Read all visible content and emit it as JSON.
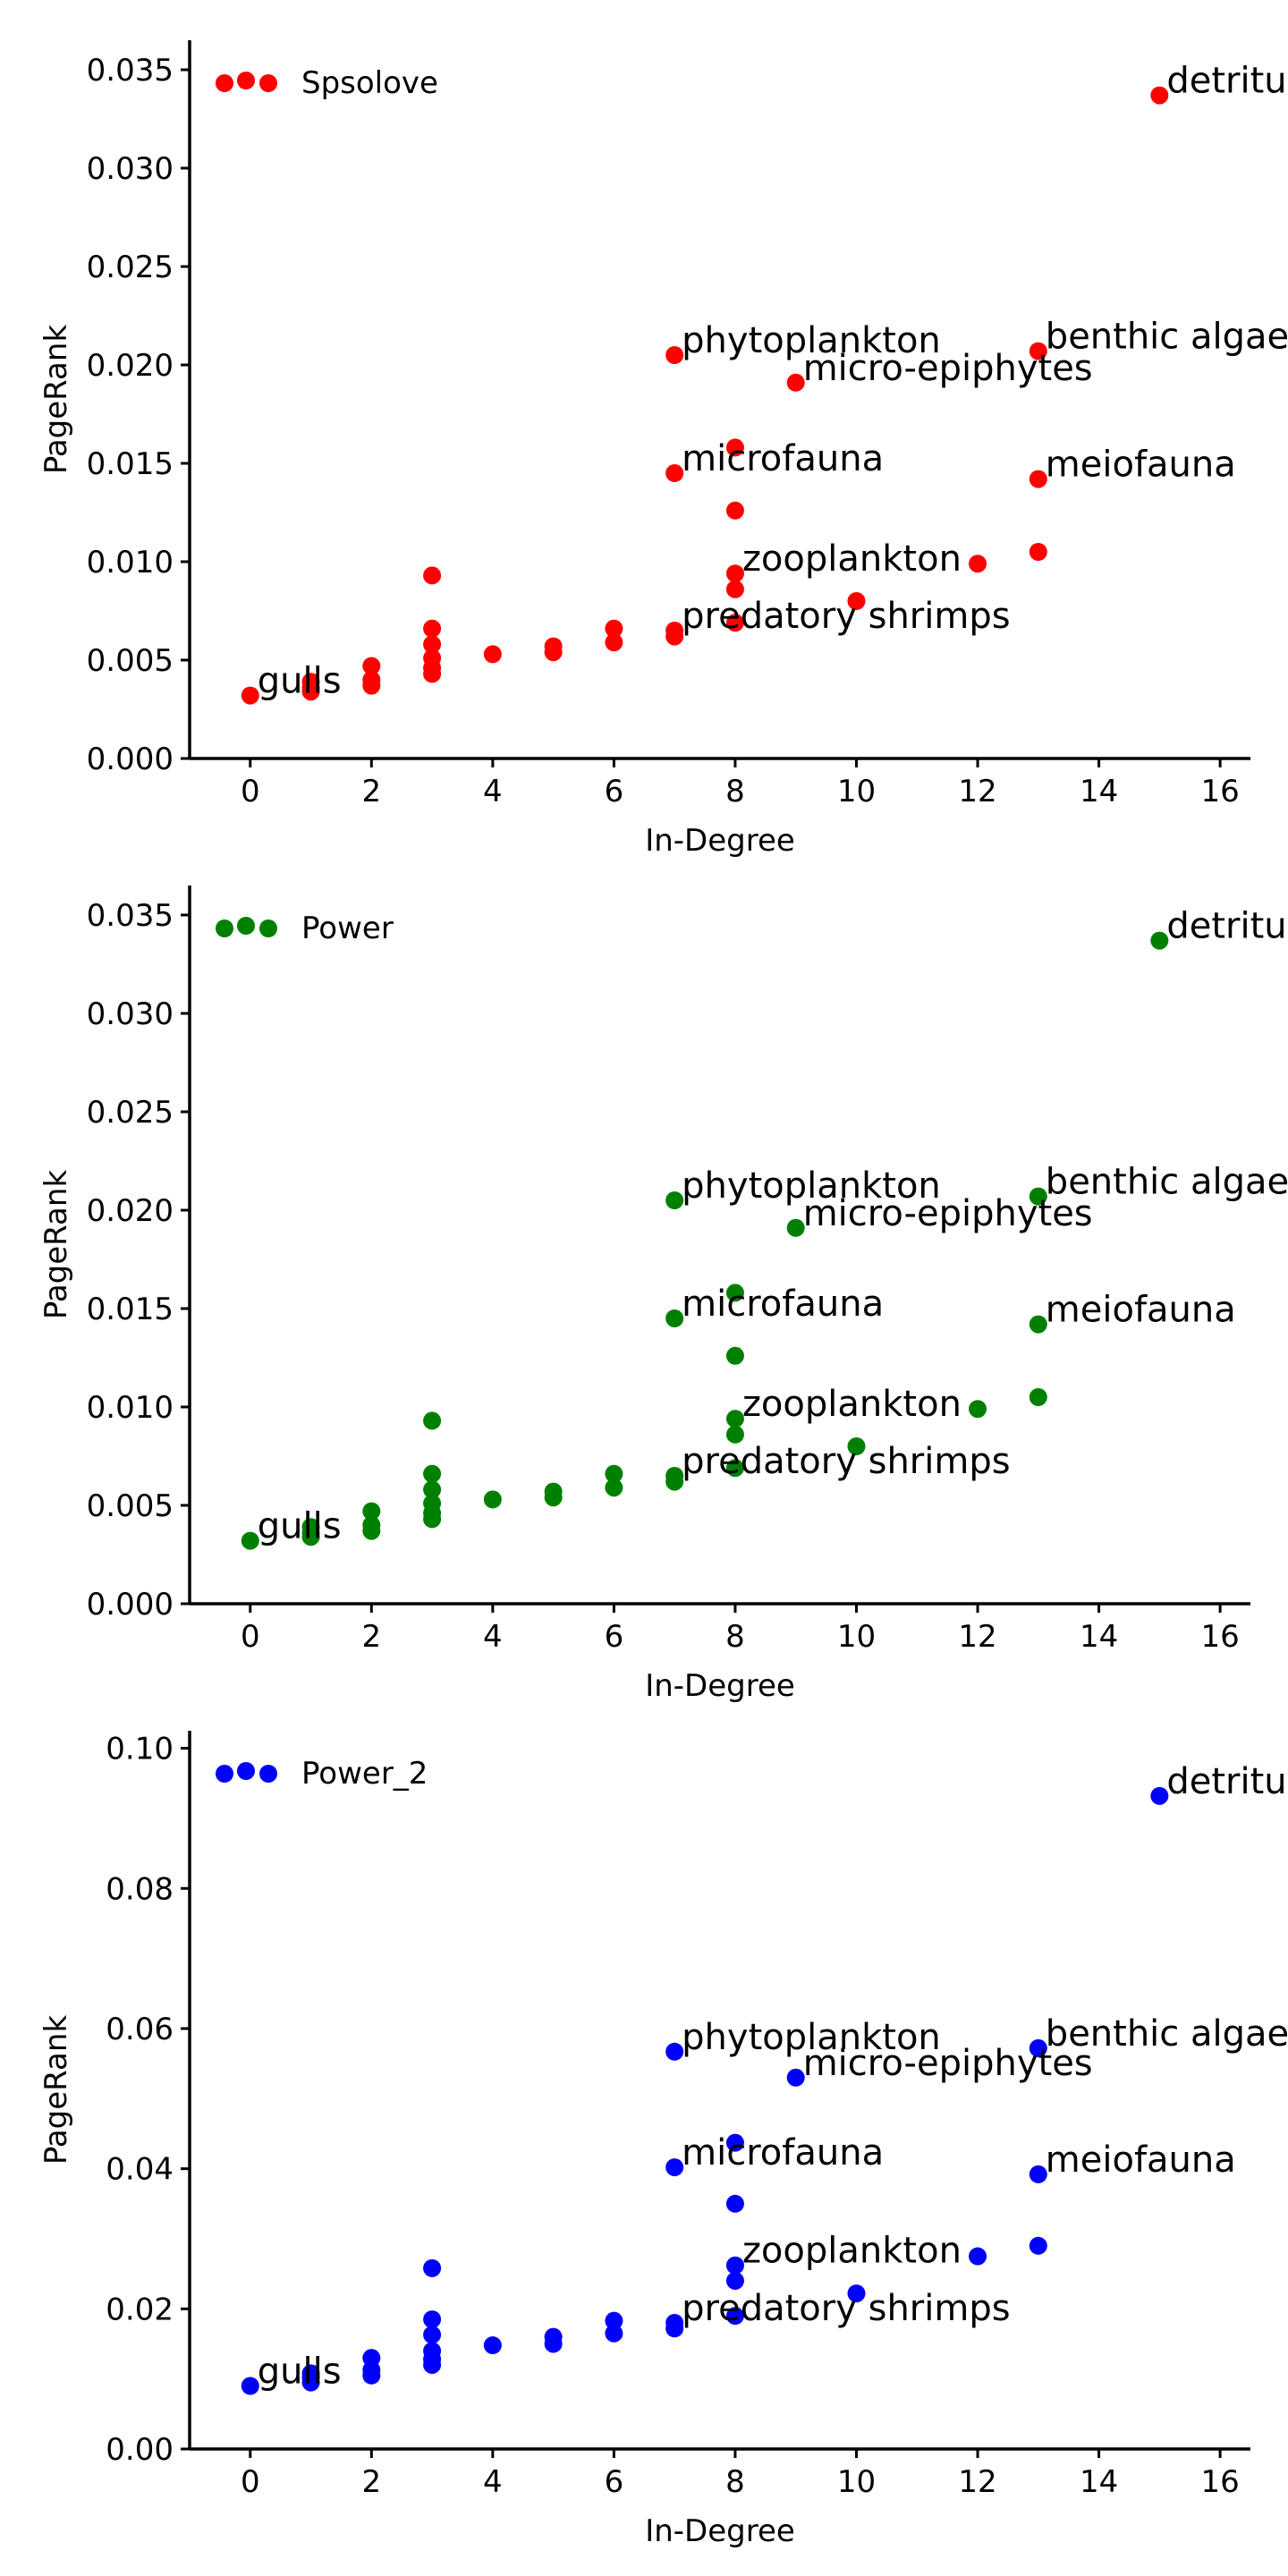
{
  "chart_data": [
    {
      "type": "scatter",
      "series": [
        {
          "name": "Spsolove",
          "color": "#ff0000"
        }
      ],
      "xlabel": "In-Degree",
      "ylabel": "PageRank",
      "xlim": [
        -1,
        16.5
      ],
      "ylim": [
        0,
        0.0365
      ],
      "xticks": [
        0,
        2,
        4,
        6,
        8,
        10,
        12,
        14,
        16
      ],
      "xtick_labels": [
        "0",
        "2",
        "4",
        "6",
        "8",
        "10",
        "12",
        "14",
        "16"
      ],
      "yticks": [
        0.0,
        0.005,
        0.01,
        0.015,
        0.02,
        0.025,
        0.03,
        0.035
      ],
      "ytick_labels": [
        "0.000",
        "0.005",
        "0.010",
        "0.015",
        "0.020",
        "0.025",
        "0.030",
        "0.035"
      ],
      "legend_position": "top-left",
      "points": [
        {
          "x": 0,
          "y": 0.0032
        },
        {
          "x": 1,
          "y": 0.0034
        },
        {
          "x": 1,
          "y": 0.0036
        },
        {
          "x": 1,
          "y": 0.0039
        },
        {
          "x": 2,
          "y": 0.0037
        },
        {
          "x": 2,
          "y": 0.004
        },
        {
          "x": 2,
          "y": 0.0047
        },
        {
          "x": 3,
          "y": 0.0043
        },
        {
          "x": 3,
          "y": 0.0046
        },
        {
          "x": 3,
          "y": 0.0051
        },
        {
          "x": 3,
          "y": 0.0058
        },
        {
          "x": 3,
          "y": 0.0066
        },
        {
          "x": 3,
          "y": 0.0093
        },
        {
          "x": 4,
          "y": 0.0053
        },
        {
          "x": 5,
          "y": 0.0054
        },
        {
          "x": 5,
          "y": 0.0057
        },
        {
          "x": 6,
          "y": 0.0059
        },
        {
          "x": 6,
          "y": 0.0066
        },
        {
          "x": 7,
          "y": 0.0062
        },
        {
          "x": 7,
          "y": 0.0065
        },
        {
          "x": 7,
          "y": 0.0145
        },
        {
          "x": 7,
          "y": 0.0205
        },
        {
          "x": 8,
          "y": 0.0069
        },
        {
          "x": 8,
          "y": 0.0086
        },
        {
          "x": 8,
          "y": 0.0094
        },
        {
          "x": 8,
          "y": 0.0126
        },
        {
          "x": 8,
          "y": 0.0158
        },
        {
          "x": 9,
          "y": 0.0191
        },
        {
          "x": 10,
          "y": 0.008
        },
        {
          "x": 12,
          "y": 0.0099
        },
        {
          "x": 13,
          "y": 0.0105
        },
        {
          "x": 13,
          "y": 0.0142
        },
        {
          "x": 13,
          "y": 0.0207
        },
        {
          "x": 15,
          "y": 0.0337
        }
      ],
      "annotations": [
        {
          "text": "detritus",
          "x": 15,
          "y": 0.0337
        },
        {
          "text": "phytoplankton",
          "x": 7,
          "y": 0.0205
        },
        {
          "text": "benthic algae",
          "x": 13,
          "y": 0.0207
        },
        {
          "text": "micro-epiphytes",
          "x": 9,
          "y": 0.0191
        },
        {
          "text": "microfauna",
          "x": 7,
          "y": 0.0145
        },
        {
          "text": "meiofauna",
          "x": 13,
          "y": 0.0142
        },
        {
          "text": "zooplankton",
          "x": 8,
          "y": 0.0094
        },
        {
          "text": "predatory shrimps",
          "x": 7,
          "y": 0.0065
        },
        {
          "text": "gulls",
          "x": 0,
          "y": 0.0032
        }
      ]
    },
    {
      "type": "scatter",
      "series": [
        {
          "name": "Power",
          "color": "#008000"
        }
      ],
      "xlabel": "In-Degree",
      "ylabel": "PageRank",
      "xlim": [
        -1,
        16.5
      ],
      "ylim": [
        0,
        0.0365
      ],
      "xticks": [
        0,
        2,
        4,
        6,
        8,
        10,
        12,
        14,
        16
      ],
      "xtick_labels": [
        "0",
        "2",
        "4",
        "6",
        "8",
        "10",
        "12",
        "14",
        "16"
      ],
      "yticks": [
        0.0,
        0.005,
        0.01,
        0.015,
        0.02,
        0.025,
        0.03,
        0.035
      ],
      "ytick_labels": [
        "0.000",
        "0.005",
        "0.010",
        "0.015",
        "0.020",
        "0.025",
        "0.030",
        "0.035"
      ],
      "legend_position": "top-left",
      "points": [
        {
          "x": 0,
          "y": 0.0032
        },
        {
          "x": 1,
          "y": 0.0034
        },
        {
          "x": 1,
          "y": 0.0036
        },
        {
          "x": 1,
          "y": 0.0039
        },
        {
          "x": 2,
          "y": 0.0037
        },
        {
          "x": 2,
          "y": 0.004
        },
        {
          "x": 2,
          "y": 0.0047
        },
        {
          "x": 3,
          "y": 0.0043
        },
        {
          "x": 3,
          "y": 0.0046
        },
        {
          "x": 3,
          "y": 0.0051
        },
        {
          "x": 3,
          "y": 0.0058
        },
        {
          "x": 3,
          "y": 0.0066
        },
        {
          "x": 3,
          "y": 0.0093
        },
        {
          "x": 4,
          "y": 0.0053
        },
        {
          "x": 5,
          "y": 0.0054
        },
        {
          "x": 5,
          "y": 0.0057
        },
        {
          "x": 6,
          "y": 0.0059
        },
        {
          "x": 6,
          "y": 0.0066
        },
        {
          "x": 7,
          "y": 0.0062
        },
        {
          "x": 7,
          "y": 0.0065
        },
        {
          "x": 7,
          "y": 0.0145
        },
        {
          "x": 7,
          "y": 0.0205
        },
        {
          "x": 8,
          "y": 0.0069
        },
        {
          "x": 8,
          "y": 0.0086
        },
        {
          "x": 8,
          "y": 0.0094
        },
        {
          "x": 8,
          "y": 0.0126
        },
        {
          "x": 8,
          "y": 0.0158
        },
        {
          "x": 9,
          "y": 0.0191
        },
        {
          "x": 10,
          "y": 0.008
        },
        {
          "x": 12,
          "y": 0.0099
        },
        {
          "x": 13,
          "y": 0.0105
        },
        {
          "x": 13,
          "y": 0.0142
        },
        {
          "x": 13,
          "y": 0.0207
        },
        {
          "x": 15,
          "y": 0.0337
        }
      ],
      "annotations": [
        {
          "text": "detritus",
          "x": 15,
          "y": 0.0337
        },
        {
          "text": "phytoplankton",
          "x": 7,
          "y": 0.0205
        },
        {
          "text": "benthic algae",
          "x": 13,
          "y": 0.0207
        },
        {
          "text": "micro-epiphytes",
          "x": 9,
          "y": 0.0191
        },
        {
          "text": "microfauna",
          "x": 7,
          "y": 0.0145
        },
        {
          "text": "meiofauna",
          "x": 13,
          "y": 0.0142
        },
        {
          "text": "zooplankton",
          "x": 8,
          "y": 0.0094
        },
        {
          "text": "predatory shrimps",
          "x": 7,
          "y": 0.0065
        },
        {
          "text": "gulls",
          "x": 0,
          "y": 0.0032
        }
      ]
    },
    {
      "type": "scatter",
      "series": [
        {
          "name": "Power_2",
          "color": "#0000ff"
        }
      ],
      "xlabel": "In-Degree",
      "ylabel": "PageRank",
      "xlim": [
        -1,
        16.5
      ],
      "ylim": [
        0,
        0.1025
      ],
      "xticks": [
        0,
        2,
        4,
        6,
        8,
        10,
        12,
        14,
        16
      ],
      "xtick_labels": [
        "0",
        "2",
        "4",
        "6",
        "8",
        "10",
        "12",
        "14",
        "16"
      ],
      "yticks": [
        0.0,
        0.02,
        0.04,
        0.06,
        0.08,
        0.1
      ],
      "ytick_labels": [
        "0.00",
        "0.02",
        "0.04",
        "0.06",
        "0.08",
        "0.10"
      ],
      "legend_position": "top-left",
      "points": [
        {
          "x": 0,
          "y": 0.009
        },
        {
          "x": 1,
          "y": 0.0095
        },
        {
          "x": 1,
          "y": 0.0102
        },
        {
          "x": 1,
          "y": 0.0108
        },
        {
          "x": 2,
          "y": 0.0105
        },
        {
          "x": 2,
          "y": 0.0113
        },
        {
          "x": 2,
          "y": 0.013
        },
        {
          "x": 3,
          "y": 0.012
        },
        {
          "x": 3,
          "y": 0.0128
        },
        {
          "x": 3,
          "y": 0.014
        },
        {
          "x": 3,
          "y": 0.0163
        },
        {
          "x": 3,
          "y": 0.0185
        },
        {
          "x": 3,
          "y": 0.0258
        },
        {
          "x": 4,
          "y": 0.0148
        },
        {
          "x": 5,
          "y": 0.015
        },
        {
          "x": 5,
          "y": 0.016
        },
        {
          "x": 6,
          "y": 0.0165
        },
        {
          "x": 6,
          "y": 0.0183
        },
        {
          "x": 7,
          "y": 0.0172
        },
        {
          "x": 7,
          "y": 0.018
        },
        {
          "x": 7,
          "y": 0.0402
        },
        {
          "x": 7,
          "y": 0.0567
        },
        {
          "x": 8,
          "y": 0.019
        },
        {
          "x": 8,
          "y": 0.024
        },
        {
          "x": 8,
          "y": 0.0262
        },
        {
          "x": 8,
          "y": 0.035
        },
        {
          "x": 8,
          "y": 0.0437
        },
        {
          "x": 9,
          "y": 0.053
        },
        {
          "x": 10,
          "y": 0.0222
        },
        {
          "x": 12,
          "y": 0.0275
        },
        {
          "x": 13,
          "y": 0.029
        },
        {
          "x": 13,
          "y": 0.0392
        },
        {
          "x": 13,
          "y": 0.0572
        },
        {
          "x": 15,
          "y": 0.0932
        }
      ],
      "annotations": [
        {
          "text": "detritus",
          "x": 15,
          "y": 0.0932
        },
        {
          "text": "phytoplankton",
          "x": 7,
          "y": 0.0567
        },
        {
          "text": "benthic algae",
          "x": 13,
          "y": 0.0572
        },
        {
          "text": "micro-epiphytes",
          "x": 9,
          "y": 0.053
        },
        {
          "text": "microfauna",
          "x": 7,
          "y": 0.0402
        },
        {
          "text": "meiofauna",
          "x": 13,
          "y": 0.0392
        },
        {
          "text": "zooplankton",
          "x": 8,
          "y": 0.0262
        },
        {
          "text": "predatory shrimps",
          "x": 7,
          "y": 0.018
        },
        {
          "text": "gulls",
          "x": 0,
          "y": 0.009
        }
      ]
    }
  ]
}
